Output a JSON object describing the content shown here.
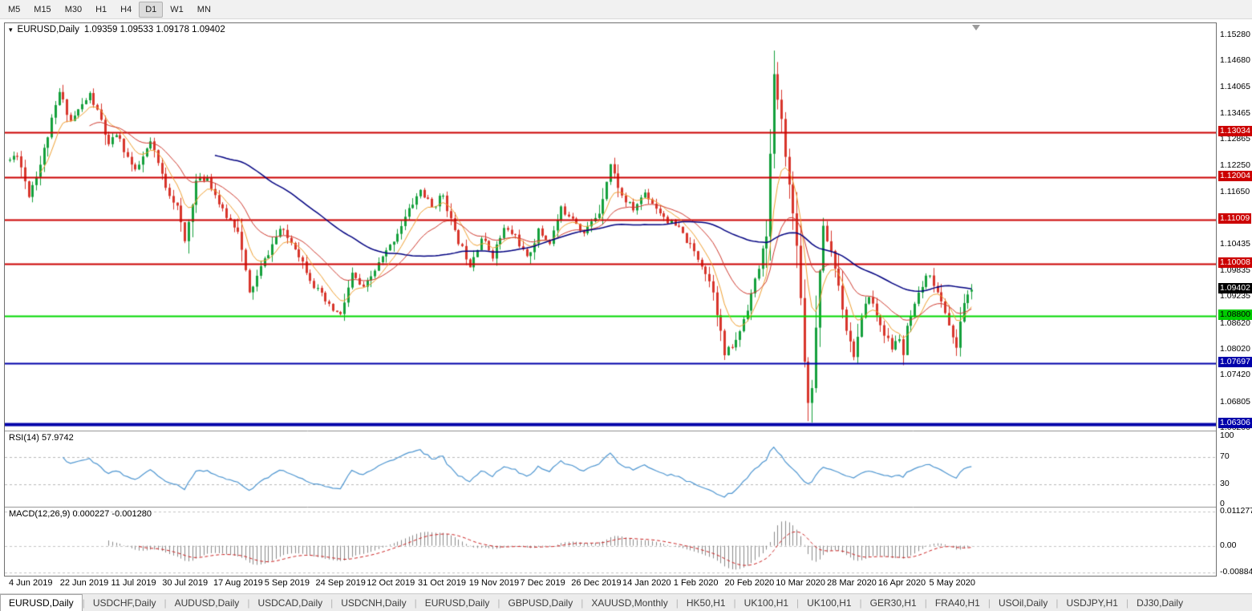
{
  "toolbar": {
    "timeframes": [
      "M5",
      "M15",
      "M30",
      "H1",
      "H4",
      "D1",
      "W1",
      "MN"
    ],
    "active": "D1"
  },
  "overlays": {
    "chart_title_symbol": "EURUSD,Daily",
    "chart_title_ohlc": "1.09359 1.09533 1.09178 1.09402",
    "rsi_label": "RSI(14) 57.9742",
    "macd_label": "MACD(12,26,9) 0.000227 -0.001280"
  },
  "chart_data": {
    "type": "candlestick",
    "symbol": "EURUSD",
    "timeframe": "Daily",
    "ohlc": {
      "open": 1.09359,
      "high": 1.09533,
      "low": 1.09178,
      "close": 1.09402
    },
    "bars": 254,
    "seed": 11,
    "ylim": {
      "top": 1.1555,
      "bottom": 1.0617
    },
    "y_ticks": [
      1.1528,
      1.1468,
      1.14065,
      1.13465,
      1.12865,
      1.1225,
      1.1165,
      1.10435,
      1.09835,
      1.09235,
      1.0862,
      1.0802,
      1.0742,
      1.06805,
      1.062
    ],
    "price_lines": [
      {
        "price": 1.13034,
        "color": "#cc0000",
        "width": 2,
        "label_bg": "#cc0000",
        "label_fg": "#ffffff"
      },
      {
        "price": 1.12004,
        "color": "#cc0000",
        "width": 2,
        "label_bg": "#cc0000",
        "label_fg": "#ffffff"
      },
      {
        "price": 1.11009,
        "color": "#cc0000",
        "width": 2,
        "label_bg": "#cc0000",
        "label_fg": "#ffffff"
      },
      {
        "price": 1.10008,
        "color": "#cc0000",
        "width": 2,
        "label_bg": "#cc0000",
        "label_fg": "#ffffff"
      },
      {
        "price": 1.088,
        "color": "#00d800",
        "width": 2,
        "label_bg": "#00cc00",
        "label_fg": "#000000"
      },
      {
        "price": 1.07697,
        "color": "#0000aa",
        "width": 2,
        "label_bg": "#0000aa",
        "label_fg": "#ffffff"
      },
      {
        "price": 1.06306,
        "color": "#0000aa",
        "width": 4,
        "label_bg": "#0000aa",
        "label_fg": "#ffffff"
      }
    ],
    "current_price": {
      "value": 1.09402,
      "label_bg": "#000000",
      "label_fg": "#ffffff"
    },
    "x_labels": [
      "4 Jun 2019",
      "22 Jun 2019",
      "11 Jul 2019",
      "30 Jul 2019",
      "17 Aug 2019",
      "5 Sep 2019",
      "24 Sep 2019",
      "12 Oct 2019",
      "31 Oct 2019",
      "19 Nov 2019",
      "7 Dec 2019",
      "26 Dec 2019",
      "14 Jan 2020",
      "1 Feb 2020",
      "20 Feb 2020",
      "10 Mar 2020",
      "28 Mar 2020",
      "16 Apr 2020",
      "5 May 2020"
    ],
    "price_waypoints": [
      [
        0,
        1.124
      ],
      [
        2,
        1.1255
      ],
      [
        5,
        1.116
      ],
      [
        8,
        1.123
      ],
      [
        13,
        1.1395
      ],
      [
        16,
        1.133
      ],
      [
        21,
        1.139
      ],
      [
        24,
        1.133
      ],
      [
        26,
        1.127
      ],
      [
        28,
        1.13
      ],
      [
        33,
        1.121
      ],
      [
        37,
        1.128
      ],
      [
        41,
        1.118
      ],
      [
        44,
        1.113
      ],
      [
        46,
        1.105
      ],
      [
        49,
        1.119
      ],
      [
        52,
        1.12
      ],
      [
        56,
        1.112
      ],
      [
        60,
        1.108
      ],
      [
        63,
        1.093
      ],
      [
        66,
        1.099
      ],
      [
        71,
        1.108
      ],
      [
        75,
        1.104
      ],
      [
        80,
        1.095
      ],
      [
        84,
        1.09
      ],
      [
        87,
        1.088
      ],
      [
        90,
        1.0975
      ],
      [
        93,
        1.094
      ],
      [
        97,
        1.1
      ],
      [
        100,
        1.104
      ],
      [
        103,
        1.109
      ],
      [
        106,
        1.114
      ],
      [
        108,
        1.117
      ],
      [
        111,
        1.113
      ],
      [
        114,
        1.116
      ],
      [
        117,
        1.107
      ],
      [
        121,
        1.1
      ],
      [
        124,
        1.106
      ],
      [
        127,
        1.102
      ],
      [
        130,
        1.108
      ],
      [
        133,
        1.1065
      ],
      [
        136,
        1.101
      ],
      [
        139,
        1.1075
      ],
      [
        142,
        1.105
      ],
      [
        145,
        1.1125
      ],
      [
        148,
        1.111
      ],
      [
        151,
        1.107
      ],
      [
        155,
        1.112
      ],
      [
        158,
        1.123
      ],
      [
        161,
        1.1155
      ],
      [
        164,
        1.1125
      ],
      [
        167,
        1.1165
      ],
      [
        170,
        1.113
      ],
      [
        173,
        1.11
      ],
      [
        176,
        1.108
      ],
      [
        179,
        1.104
      ],
      [
        182,
        1.1
      ],
      [
        185,
        1.094
      ],
      [
        188,
        1.079
      ],
      [
        191,
        1.082
      ],
      [
        194,
        1.09
      ],
      [
        197,
        1.099
      ],
      [
        199,
        1.107
      ],
      [
        200,
        1.125
      ],
      [
        201,
        1.143
      ],
      [
        203,
        1.133
      ],
      [
        205,
        1.118
      ],
      [
        207,
        1.105
      ],
      [
        208,
        1.092
      ],
      [
        209,
        1.078
      ],
      [
        210,
        1.068
      ],
      [
        211,
        1.072
      ],
      [
        212,
        1.085
      ],
      [
        213,
        1.099
      ],
      [
        214,
        1.108
      ],
      [
        216,
        1.103
      ],
      [
        218,
        1.095
      ],
      [
        220,
        1.085
      ],
      [
        222,
        1.079
      ],
      [
        224,
        1.087
      ],
      [
        226,
        1.093
      ],
      [
        228,
        1.088
      ],
      [
        230,
        1.084
      ],
      [
        232,
        1.0805
      ],
      [
        234,
        1.083
      ],
      [
        235,
        1.079
      ],
      [
        236,
        1.085
      ],
      [
        238,
        1.09
      ],
      [
        240,
        1.095
      ],
      [
        242,
        1.098
      ],
      [
        244,
        1.093
      ],
      [
        246,
        1.089
      ],
      [
        248,
        1.083
      ],
      [
        249,
        1.08
      ],
      [
        250,
        1.087
      ],
      [
        251,
        1.091
      ],
      [
        253,
        1.094
      ]
    ],
    "forced_extremes": [
      {
        "i": 201,
        "high": 1.1492
      },
      {
        "i": 210,
        "low": 1.0637
      },
      {
        "i": 235,
        "low": 1.0766
      }
    ],
    "moving_averages": [
      {
        "type": "ema",
        "period": 8,
        "color": "#f0a030",
        "width": 1
      },
      {
        "type": "ema",
        "period": 21,
        "color": "#d03a2f",
        "width": 1
      },
      {
        "type": "sma",
        "period": 55,
        "color": "#000080",
        "width": 1.5
      }
    ],
    "colors": {
      "up": "#14a03c",
      "down": "#d8352b"
    },
    "indicators": {
      "rsi": {
        "label": "RSI(14) 57.9742",
        "value": 57.9742,
        "period": 14,
        "levels": [
          100,
          70,
          30,
          0
        ],
        "dashed_levels": [
          70,
          30
        ],
        "color": "#4e96d1"
      },
      "macd": {
        "label": "MACD(12,26,9) 0.000227 -0.001280",
        "main": 0.000227,
        "signal_value": -0.00128,
        "fast": 12,
        "slow": 26,
        "signal": 9,
        "axis": [
          "0.011277",
          "0.00",
          "-0.00884"
        ],
        "histogram_color": "#8a8a8a",
        "signal_color": "#cc2222"
      }
    }
  },
  "tabs": {
    "items": [
      "EURUSD,Daily",
      "USDCHF,Daily",
      "AUDUSD,Daily",
      "USDCAD,Daily",
      "USDCNH,Daily",
      "EURUSD,Daily",
      "GBPUSD,Daily",
      "XAUUSD,Monthly",
      "HK50,H1",
      "UK100,H1",
      "UK100,H1",
      "GER30,H1",
      "FRA40,H1",
      "USOil,Daily",
      "USDJPY,H1",
      "DJ30,Daily"
    ],
    "active_index": 0
  }
}
